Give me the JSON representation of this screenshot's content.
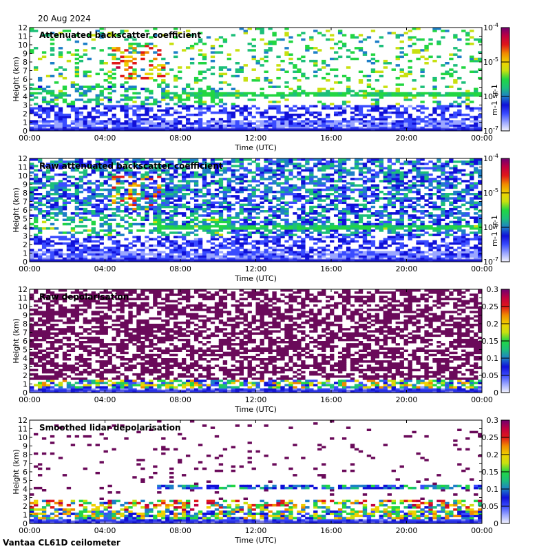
{
  "date": "20 Aug 2024",
  "footer": "Vantaa CL61D ceilometer",
  "colors": {
    "scale": [
      "#f4f4ff",
      "#9aa6ff",
      "#3a4cff",
      "#1010d8",
      "#1e7fc8",
      "#1dbf7a",
      "#22d642",
      "#c8e010",
      "#f0d000",
      "#f08a00",
      "#e01818",
      "#c00040",
      "#700070"
    ],
    "ground_band": "#1a1acc",
    "depol_scatter": "#6a0a5a"
  },
  "chart_data": [
    {
      "type": "heatmap",
      "title": "Attenuated backscatter coefficient",
      "xlabel": "Time (UTC)",
      "ylabel": "Height (km)",
      "x_ticks": [
        "00:00",
        "04:00",
        "08:00",
        "12:00",
        "16:00",
        "20:00",
        "00:00"
      ],
      "y_ticks": [
        "0",
        "1",
        "2",
        "3",
        "4",
        "5",
        "6",
        "7",
        "8",
        "9",
        "10",
        "11",
        "12"
      ],
      "ylim": [
        0,
        12
      ],
      "xlim": [
        "00:00",
        "00:00"
      ],
      "colorbar": {
        "scale": "log",
        "range": [
          "10^-7",
          "10^-4"
        ],
        "tick_labels": [
          "10-7",
          "10-6",
          "10-5",
          "10-4"
        ],
        "unit": "m-1 sr-1"
      },
      "features": {
        "cloud_layer_km": 4.3,
        "noise_top_km": 3.2,
        "boundary_layer_top_km": 1.2
      }
    },
    {
      "type": "heatmap",
      "title": "Raw attenuated backscatter coefficient",
      "xlabel": "Time (UTC)",
      "ylabel": "Height (km)",
      "x_ticks": [
        "00:00",
        "04:00",
        "08:00",
        "12:00",
        "16:00",
        "20:00",
        "00:00"
      ],
      "y_ticks": [
        "0",
        "1",
        "2",
        "3",
        "4",
        "5",
        "6",
        "7",
        "8",
        "9",
        "10",
        "11",
        "12"
      ],
      "ylim": [
        0,
        12
      ],
      "colorbar": {
        "scale": "log",
        "range": [
          "10^-7",
          "10^-4"
        ],
        "tick_labels": [
          "10-7",
          "10-6",
          "10-5",
          "10-4"
        ],
        "unit": "m-1 sr-1"
      },
      "features": {
        "cloud_layer_km": 4.0,
        "boundary_layer_top_km": 1.2
      }
    },
    {
      "type": "heatmap",
      "title": "Raw depolarisation",
      "xlabel": "Time (UTC)",
      "ylabel": "Height (km)",
      "x_ticks": [
        "00:00",
        "04:00",
        "08:00",
        "12:00",
        "16:00",
        "20:00",
        "00:00"
      ],
      "y_ticks": [
        "0",
        "1",
        "2",
        "3",
        "4",
        "5",
        "6",
        "7",
        "8",
        "9",
        "10",
        "11",
        "12"
      ],
      "ylim": [
        0,
        12
      ],
      "colorbar": {
        "scale": "linear",
        "range": [
          0,
          0.3
        ],
        "tick_labels": [
          "0",
          "0.05",
          "0.1",
          "0.15",
          "0.2",
          "0.25",
          "0.3"
        ]
      }
    },
    {
      "type": "heatmap",
      "title": "Smoothed lidar depolarisation",
      "xlabel": "Time (UTC)",
      "ylabel": "Height (km)",
      "x_ticks": [
        "00:00",
        "04:00",
        "08:00",
        "12:00",
        "16:00",
        "20:00",
        "00:00"
      ],
      "y_ticks": [
        "0",
        "1",
        "2",
        "3",
        "4",
        "5",
        "6",
        "7",
        "8",
        "9",
        "10",
        "11",
        "12"
      ],
      "ylim": [
        0,
        12
      ],
      "colorbar": {
        "scale": "linear",
        "range": [
          0,
          0.3
        ],
        "tick_labels": [
          "0",
          "0.05",
          "0.1",
          "0.15",
          "0.2",
          "0.25",
          "0.3"
        ]
      },
      "features": {
        "cloud_layer_km": 4.3,
        "boundary_layer_top_km": 1.2
      }
    }
  ]
}
